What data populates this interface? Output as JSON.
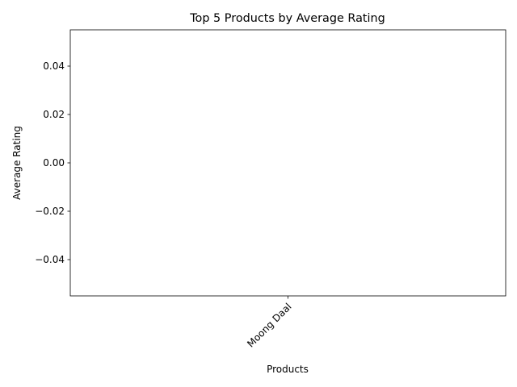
{
  "chart_data": {
    "type": "bar",
    "title": "Top 5 Products by Average Rating",
    "xlabel": "Products",
    "ylabel": "Average Rating",
    "categories": [
      "Moong Daal"
    ],
    "values": [
      0
    ],
    "ylim": [
      -0.055,
      0.055
    ],
    "yticks": [
      -0.04,
      -0.02,
      0.0,
      0.02,
      0.04
    ],
    "ytick_labels": [
      "−0.04",
      "−0.02",
      "0.00",
      "0.02",
      "0.04"
    ],
    "xtick_rotation": 45,
    "grid": false,
    "bar_color": "#1f77b4"
  }
}
